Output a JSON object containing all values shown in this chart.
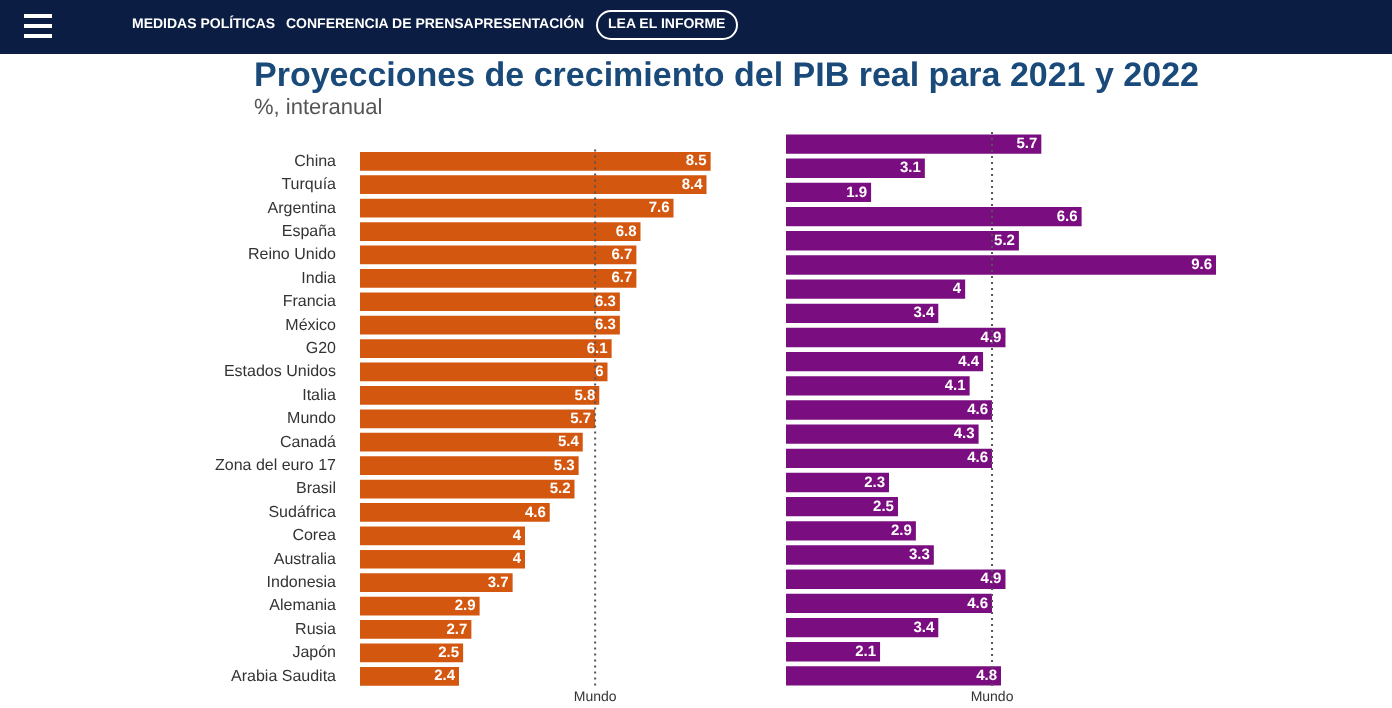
{
  "chart_data": [
    {
      "type": "bar",
      "orientation": "horizontal",
      "title": "Proyecciones de crecimiento del PIB real para 2021 y 2022",
      "subtitle": "%, interanual",
      "annotations": [
        "MEDIDAS POLÍTICAS",
        "CONFERENCIA DE PRENSA",
        "PRESENTACIÓN",
        "LEA EL INFORME"
      ],
      "categories": [
        "China",
        "Turquía",
        "Argentina",
        "España",
        "Reino Unido",
        "India",
        "Francia",
        "México",
        "G20",
        "Estados Unidos",
        "Italia",
        "Mundo",
        "Canadá",
        "Zona del euro 17",
        "Brasil",
        "Sudáfrica",
        "Corea",
        "Australia",
        "Indonesia",
        "Alemania",
        "Rusia",
        "Japón",
        "Arabia Saudita"
      ],
      "values": [
        8.5,
        8.4,
        7.6,
        6.8,
        6.7,
        6.7,
        6.3,
        6.3,
        6.1,
        6,
        5.8,
        5.7,
        5.4,
        5.3,
        5.2,
        4.6,
        4,
        4,
        3.7,
        2.9,
        2.7,
        2.5,
        2.4
      ],
      "color": "#d4570f",
      "data_labels": true,
      "tick_labels": "y",
      "ref_lines": [
        {
          "axis": "x",
          "value": 5.7,
          "label": "Mundo",
          "color": "#555555",
          "line_style": "dotted"
        }
      ]
    },
    {
      "type": "bar",
      "orientation": "horizontal",
      "categories": [
        null,
        null,
        null,
        null,
        null,
        null,
        null,
        null,
        null,
        null,
        null,
        null,
        null,
        null,
        null,
        null,
        null,
        null,
        null,
        null,
        null,
        null,
        null
      ],
      "values": [
        5.7,
        3.1,
        1.9,
        6.6,
        5.2,
        9.6,
        4,
        3.4,
        4.9,
        4.4,
        4.1,
        4.6,
        4.3,
        4.6,
        2.3,
        2.5,
        2.9,
        3.3,
        4.9,
        4.6,
        3.4,
        2.1,
        4.8
      ],
      "color": "#7a0e80",
      "data_labels": true,
      "tick_labels": false,
      "ref_lines": [
        {
          "axis": "x",
          "value": 4.6,
          "label": "Mundo",
          "color": "#555555",
          "line_style": "dotted"
        }
      ]
    }
  ]
}
